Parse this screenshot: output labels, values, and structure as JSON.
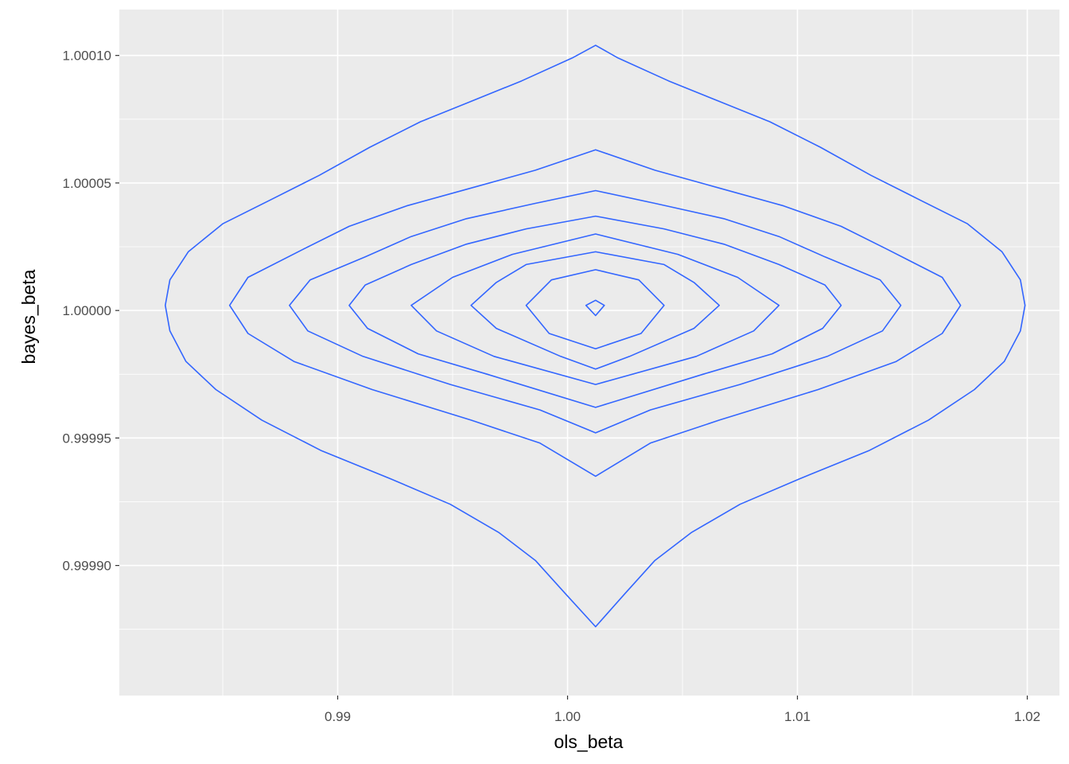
{
  "chart_data": {
    "type": "contour",
    "title": "",
    "xlabel": "ols_beta",
    "ylabel": "bayes_beta",
    "xlim": [
      0.9805,
      1.0214
    ],
    "ylim": [
      0.999849,
      1.000118
    ],
    "x_ticks": [
      0.99,
      1.0,
      1.01,
      1.02
    ],
    "x_tick_labels": [
      "0.99",
      "1.00",
      "1.01",
      "1.02"
    ],
    "y_ticks": [
      0.9999,
      0.99995,
      1.0,
      1.00005,
      1.0001
    ],
    "y_tick_labels": [
      "0.99990",
      "0.99995",
      "1.00000",
      "1.00005",
      "1.00010"
    ],
    "grid": true,
    "panel_background": "#ebebeb",
    "line_color": "#3366ff",
    "center": [
      1.00122,
      1.000002
    ],
    "contours": [
      {
        "level": 1,
        "points": [
          [
            1.00122,
            1.000104
          ],
          [
            1.0022,
            1.000099
          ],
          [
            1.0044,
            1.00009
          ],
          [
            1.0066,
            1.000082
          ],
          [
            1.0088,
            1.000074
          ],
          [
            1.011,
            1.000064
          ],
          [
            1.0132,
            1.000053
          ],
          [
            1.0154,
            1.000043
          ],
          [
            1.0174,
            1.000034
          ],
          [
            1.0189,
            1.000023
          ],
          [
            1.0197,
            1.000012
          ],
          [
            1.0199,
            1.000002
          ],
          [
            1.0197,
            0.999992
          ],
          [
            1.019,
            0.99998
          ],
          [
            1.0177,
            0.999969
          ],
          [
            1.0157,
            0.999957
          ],
          [
            1.0131,
            0.999945
          ],
          [
            1.0101,
            0.999934
          ],
          [
            1.0075,
            0.999924
          ],
          [
            1.0054,
            0.999913
          ],
          [
            1.0038,
            0.999902
          ],
          [
            1.0025,
            0.999889
          ],
          [
            1.00122,
            0.999876
          ],
          [
            0.9999,
            0.999889
          ],
          [
            0.9986,
            0.999902
          ],
          [
            0.997,
            0.999913
          ],
          [
            0.9949,
            0.999924
          ],
          [
            0.9923,
            0.999934
          ],
          [
            0.9893,
            0.999945
          ],
          [
            0.9867,
            0.999957
          ],
          [
            0.9847,
            0.999969
          ],
          [
            0.9834,
            0.99998
          ],
          [
            0.9827,
            0.999992
          ],
          [
            0.9825,
            1.000002
          ],
          [
            0.9827,
            1.000012
          ],
          [
            0.9835,
            1.000023
          ],
          [
            0.985,
            1.000034
          ],
          [
            0.987,
            1.000043
          ],
          [
            0.9892,
            1.000053
          ],
          [
            0.9914,
            1.000064
          ],
          [
            0.9936,
            1.000074
          ],
          [
            0.9958,
            1.000082
          ],
          [
            0.998,
            1.00009
          ],
          [
            1.0002,
            1.000099
          ]
        ]
      },
      {
        "level": 2,
        "points": [
          [
            1.00122,
            1.000063
          ],
          [
            1.0038,
            1.000055
          ],
          [
            1.0066,
            1.000048
          ],
          [
            1.0094,
            1.000041
          ],
          [
            1.0119,
            1.000033
          ],
          [
            1.0139,
            1.000024
          ],
          [
            1.0163,
            1.000013
          ],
          [
            1.0171,
            1.000002
          ],
          [
            1.0163,
            0.999991
          ],
          [
            1.0143,
            0.99998
          ],
          [
            1.0109,
            0.999969
          ],
          [
            1.0066,
            0.999957
          ],
          [
            1.0036,
            0.999948
          ],
          [
            1.00122,
            0.999935
          ],
          [
            0.9988,
            0.999948
          ],
          [
            0.9958,
            0.999957
          ],
          [
            0.9915,
            0.999969
          ],
          [
            0.9881,
            0.99998
          ],
          [
            0.9861,
            0.999991
          ],
          [
            0.9853,
            1.000002
          ],
          [
            0.9861,
            1.000013
          ],
          [
            0.9885,
            1.000024
          ],
          [
            0.9905,
            1.000033
          ],
          [
            0.993,
            1.000041
          ],
          [
            0.9958,
            1.000048
          ],
          [
            0.9986,
            1.000055
          ]
        ]
      },
      {
        "level": 3,
        "points": [
          [
            1.00122,
            1.000047
          ],
          [
            1.0038,
            1.000042
          ],
          [
            1.0068,
            1.000036
          ],
          [
            1.0092,
            1.000029
          ],
          [
            1.0112,
            1.000021
          ],
          [
            1.0136,
            1.000012
          ],
          [
            1.0145,
            1.000002
          ],
          [
            1.0137,
            0.999992
          ],
          [
            1.0113,
            0.999982
          ],
          [
            1.0075,
            0.999971
          ],
          [
            1.0036,
            0.999961
          ],
          [
            1.00122,
            0.999952
          ],
          [
            0.9988,
            0.999961
          ],
          [
            0.9949,
            0.999971
          ],
          [
            0.9911,
            0.999982
          ],
          [
            0.9887,
            0.999992
          ],
          [
            0.9879,
            1.000002
          ],
          [
            0.9888,
            1.000012
          ],
          [
            0.9912,
            1.000021
          ],
          [
            0.9932,
            1.000029
          ],
          [
            0.9956,
            1.000036
          ],
          [
            0.9986,
            1.000042
          ]
        ]
      },
      {
        "level": 4,
        "points": [
          [
            1.00122,
            1.000037
          ],
          [
            1.0042,
            1.000032
          ],
          [
            1.0068,
            1.000026
          ],
          [
            1.0092,
            1.000018
          ],
          [
            1.0112,
            1.00001
          ],
          [
            1.0119,
            1.000002
          ],
          [
            1.0111,
            0.999993
          ],
          [
            1.0089,
            0.999983
          ],
          [
            1.0059,
            0.999975
          ],
          [
            1.00122,
            0.999962
          ],
          [
            0.9965,
            0.999975
          ],
          [
            0.9935,
            0.999983
          ],
          [
            0.9913,
            0.999993
          ],
          [
            0.9905,
            1.000002
          ],
          [
            0.9912,
            1.00001
          ],
          [
            0.9932,
            1.000018
          ],
          [
            0.9956,
            1.000026
          ],
          [
            0.9982,
            1.000032
          ]
        ]
      },
      {
        "level": 5,
        "points": [
          [
            1.00122,
            1.00003
          ],
          [
            1.0048,
            1.000022
          ],
          [
            1.0074,
            1.000013
          ],
          [
            1.0092,
            1.000002
          ],
          [
            1.0081,
            0.999992
          ],
          [
            1.0056,
            0.999982
          ],
          [
            1.00122,
            0.999971
          ],
          [
            0.9968,
            0.999982
          ],
          [
            0.9943,
            0.999992
          ],
          [
            0.9932,
            1.000002
          ],
          [
            0.995,
            1.000013
          ],
          [
            0.9976,
            1.000022
          ]
        ]
      },
      {
        "level": 6,
        "points": [
          [
            1.00122,
            1.000023
          ],
          [
            1.0042,
            1.000018
          ],
          [
            1.0055,
            1.000011
          ],
          [
            1.0066,
            1.000002
          ],
          [
            1.0055,
            0.999993
          ],
          [
            1.0027,
            0.999982
          ],
          [
            1.00122,
            0.999977
          ],
          [
            0.9997,
            0.999982
          ],
          [
            0.9969,
            0.999993
          ],
          [
            0.9958,
            1.000002
          ],
          [
            0.9969,
            1.000011
          ],
          [
            0.9982,
            1.000018
          ]
        ]
      },
      {
        "level": 7,
        "points": [
          [
            1.00122,
            1.000016
          ],
          [
            1.0031,
            1.000012
          ],
          [
            1.0042,
            1.000002
          ],
          [
            1.0032,
            0.999991
          ],
          [
            1.00122,
            0.999985
          ],
          [
            0.9992,
            0.999991
          ],
          [
            0.9982,
            1.000002
          ],
          [
            0.9993,
            1.000012
          ]
        ]
      },
      {
        "level": 8,
        "points": [
          [
            1.00122,
            1.000004
          ],
          [
            1.0016,
            1.000002
          ],
          [
            1.00122,
            0.999998
          ],
          [
            1.0008,
            1.000002
          ]
        ]
      }
    ]
  }
}
